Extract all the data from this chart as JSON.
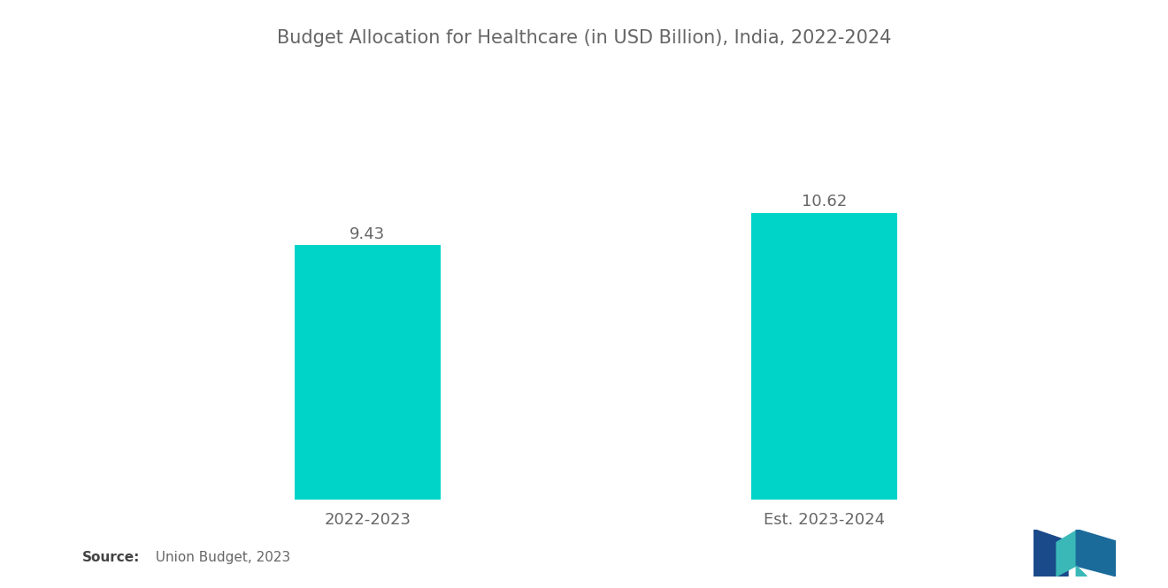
{
  "title": "Budget Allocation for Healthcare (in USD Billion), India, 2022-2024",
  "categories": [
    "2022-2023",
    "Est. 2023-2024"
  ],
  "values": [
    9.43,
    10.62
  ],
  "bar_color": "#00D4C8",
  "bar_width": 0.32,
  "bar_positions": [
    1,
    2
  ],
  "xlim": [
    0.4,
    2.6
  ],
  "ylim": [
    0,
    13.5
  ],
  "title_fontsize": 15,
  "label_fontsize": 13,
  "value_fontsize": 13,
  "background_color": "#ffffff",
  "text_color": "#666666",
  "source_bold": "Source:",
  "source_normal": "  Union Budget, 2023",
  "source_fontsize": 11
}
